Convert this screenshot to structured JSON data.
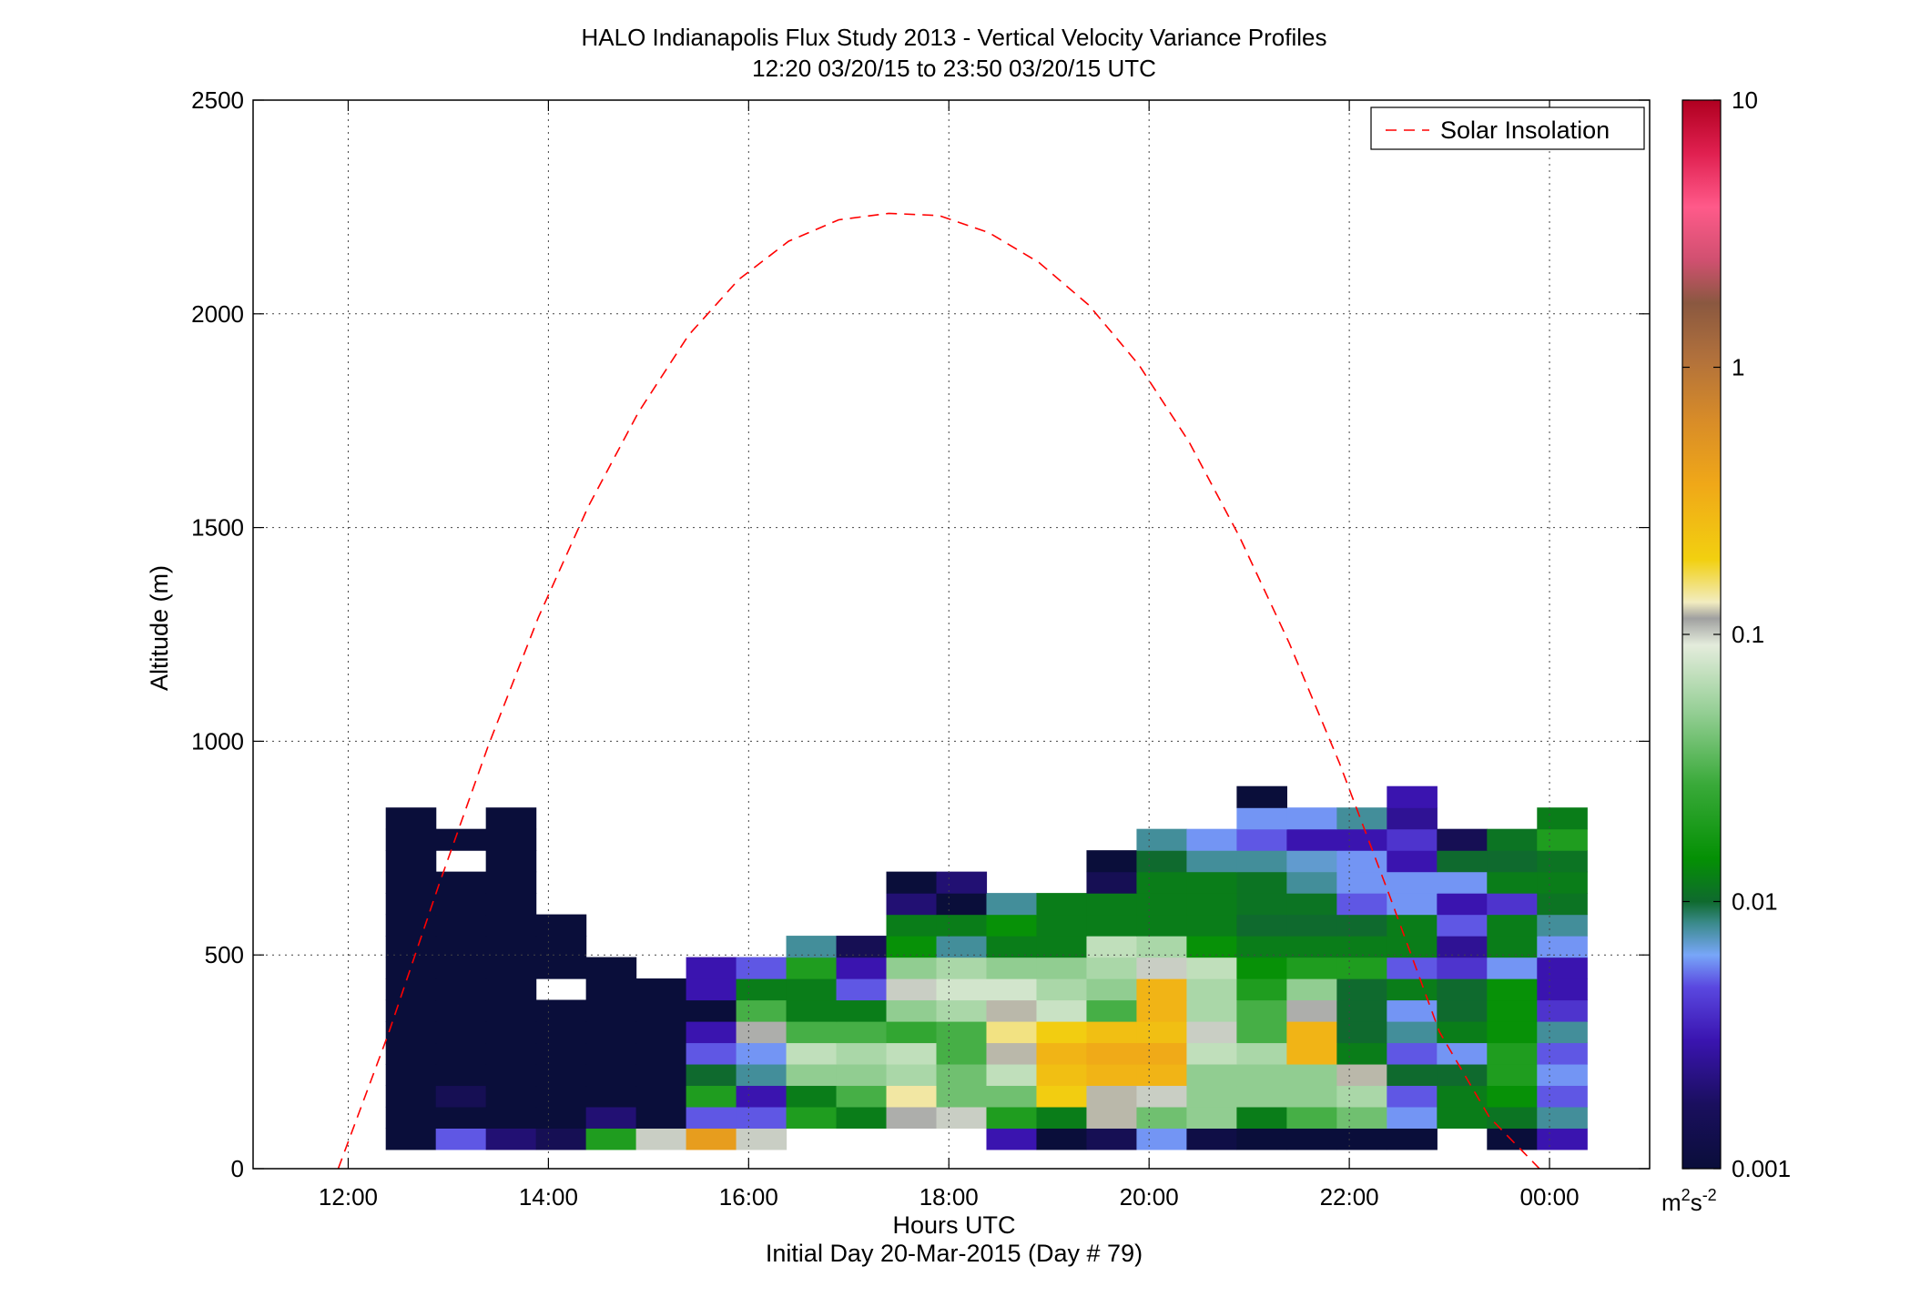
{
  "chart_data": {
    "type": "heatmap",
    "title": "HALO Indianapolis Flux Study 2013 - Vertical Velocity Variance Profiles",
    "subtitle": "12:20 03/20/15 to 23:50 03/20/15  UTC",
    "xlabel": "Hours UTC",
    "xlabel2": "Initial Day 20-Mar-2015 (Day # 79)",
    "ylabel": "Altitude (m)",
    "xlim": [
      11.05,
      25.0
    ],
    "ylim": [
      0,
      2500
    ],
    "x_ticks": [
      12,
      14,
      16,
      18,
      20,
      22,
      24
    ],
    "x_tick_labels": [
      "12:00",
      "14:00",
      "16:00",
      "18:00",
      "20:00",
      "22:00",
      "00:00"
    ],
    "y_ticks": [
      0,
      500,
      1000,
      1500,
      2000,
      2500
    ],
    "y_tick_labels": [
      "0",
      "500",
      "1000",
      "1500",
      "2000",
      "2500"
    ],
    "grid": true,
    "legend_position": "top-right",
    "colorbar": {
      "scale": "log",
      "range": [
        0.001,
        10
      ],
      "ticks": [
        0.001,
        0.01,
        0.1,
        1,
        10
      ],
      "tick_labels": [
        "0.001",
        "0.01",
        "0.1",
        "1",
        "10"
      ],
      "units_base": "m",
      "units_exp1": "2",
      "units_mid": "s",
      "units_exp2": "-2"
    },
    "time_bins_start_hour": 12.375,
    "time_bin_width_hours": 0.5,
    "altitude_bins_start_m": 45,
    "altitude_bin_height_m": 50,
    "grid_values": [
      [
        0.001,
        0.005,
        0.002,
        0.0015,
        0.02,
        0.1,
        0.45,
        0.1,
        null,
        null,
        null,
        null,
        0.003,
        0.001,
        0.0015,
        0.006,
        0.0012,
        0.001,
        0.001,
        0.001,
        0.001,
        null,
        0.001,
        0.003
      ],
      [
        0.001,
        0.001,
        0.001,
        0.001,
        0.002,
        0.001,
        0.005,
        0.005,
        0.02,
        0.012,
        0.11,
        0.1,
        0.02,
        0.012,
        0.12,
        0.04,
        0.05,
        0.012,
        0.03,
        0.04,
        0.006,
        0.012,
        0.011,
        0.008
      ],
      [
        0.001,
        0.0015,
        0.001,
        0.001,
        0.001,
        0.001,
        0.02,
        0.003,
        0.012,
        0.03,
        0.14,
        0.04,
        0.04,
        0.2,
        0.12,
        0.1,
        0.05,
        0.05,
        0.05,
        0.06,
        0.005,
        0.012,
        0.015,
        0.005
      ],
      [
        0.001,
        0.001,
        0.001,
        0.001,
        0.001,
        0.001,
        0.01,
        0.008,
        0.05,
        0.05,
        0.06,
        0.04,
        0.07,
        0.25,
        0.3,
        0.3,
        0.05,
        0.05,
        0.05,
        0.12,
        0.01,
        0.01,
        0.02,
        0.006
      ],
      [
        0.001,
        0.001,
        0.001,
        0.001,
        0.001,
        0.001,
        0.005,
        0.006,
        0.07,
        0.06,
        0.07,
        0.03,
        0.12,
        0.3,
        0.35,
        0.35,
        0.07,
        0.06,
        0.3,
        0.012,
        0.005,
        0.006,
        0.02,
        0.005
      ],
      [
        0.001,
        0.001,
        0.001,
        0.001,
        0.001,
        0.001,
        0.003,
        0.11,
        0.03,
        0.03,
        0.025,
        0.03,
        0.15,
        0.2,
        0.25,
        0.25,
        0.1,
        0.03,
        0.3,
        0.01,
        0.008,
        0.012,
        0.015,
        0.008
      ],
      [
        0.001,
        0.001,
        0.001,
        0.001,
        0.001,
        0.001,
        0.001,
        0.03,
        0.012,
        0.012,
        0.05,
        0.06,
        0.12,
        0.075,
        0.03,
        0.3,
        0.06,
        0.03,
        0.11,
        0.01,
        0.006,
        0.01,
        0.015,
        0.004
      ],
      [
        0.001,
        0.001,
        0.001,
        null,
        0.001,
        0.001,
        0.003,
        0.012,
        0.012,
        0.005,
        0.1,
        0.08,
        0.08,
        0.06,
        0.05,
        0.3,
        0.06,
        0.02,
        0.05,
        0.01,
        0.012,
        0.01,
        0.015,
        0.003
      ],
      [
        0.001,
        0.001,
        0.001,
        0.001,
        0.001,
        null,
        0.003,
        0.005,
        0.02,
        0.003,
        0.05,
        0.06,
        0.05,
        0.05,
        0.06,
        0.1,
        0.07,
        0.015,
        0.02,
        0.02,
        0.005,
        0.004,
        0.006,
        0.003
      ],
      [
        0.001,
        0.001,
        0.001,
        0.001,
        null,
        null,
        null,
        null,
        0.008,
        0.0015,
        0.015,
        0.008,
        0.012,
        0.012,
        0.07,
        0.06,
        0.015,
        0.012,
        0.012,
        0.012,
        0.012,
        0.0025,
        0.012,
        0.006
      ],
      [
        0.001,
        0.001,
        0.001,
        0.001,
        null,
        null,
        null,
        null,
        null,
        null,
        0.012,
        0.012,
        0.015,
        0.012,
        0.012,
        0.012,
        0.012,
        0.01,
        0.01,
        0.01,
        0.012,
        0.005,
        0.012,
        0.008
      ],
      [
        0.001,
        0.001,
        0.001,
        null,
        null,
        null,
        null,
        null,
        null,
        null,
        0.002,
        0.001,
        0.008,
        0.012,
        0.012,
        0.012,
        0.012,
        0.011,
        0.011,
        0.005,
        0.006,
        0.003,
        0.004,
        0.011
      ],
      [
        0.001,
        0.001,
        0.001,
        null,
        null,
        null,
        null,
        null,
        null,
        null,
        0.001,
        0.002,
        null,
        null,
        0.0015,
        0.012,
        0.012,
        0.011,
        0.008,
        0.006,
        0.006,
        0.006,
        0.012,
        0.012
      ],
      [
        0.001,
        null,
        0.001,
        null,
        null,
        null,
        null,
        null,
        null,
        null,
        null,
        null,
        null,
        null,
        0.001,
        0.01,
        0.008,
        0.008,
        0.007,
        0.006,
        0.003,
        0.01,
        0.01,
        0.011
      ],
      [
        0.001,
        0.001,
        0.001,
        null,
        null,
        null,
        null,
        null,
        null,
        null,
        null,
        null,
        null,
        null,
        null,
        0.008,
        0.006,
        0.005,
        0.003,
        0.003,
        0.004,
        0.0015,
        0.011,
        0.02
      ],
      [
        0.001,
        null,
        0.001,
        null,
        null,
        null,
        null,
        null,
        null,
        null,
        null,
        null,
        null,
        null,
        null,
        null,
        null,
        0.006,
        0.006,
        0.008,
        0.0025,
        null,
        null,
        0.012
      ],
      [
        null,
        null,
        null,
        null,
        null,
        null,
        null,
        null,
        null,
        null,
        null,
        null,
        null,
        null,
        null,
        null,
        null,
        0.001,
        null,
        null,
        0.003,
        null,
        null,
        null
      ]
    ],
    "series": [
      {
        "name": "Solar Insolation",
        "style": "dashed",
        "color": "#ff0000",
        "x": [
          11.9,
          12.4,
          12.9,
          13.4,
          13.9,
          14.4,
          14.9,
          15.4,
          15.9,
          16.4,
          16.9,
          17.4,
          17.9,
          18.4,
          18.9,
          19.4,
          19.9,
          20.4,
          20.9,
          21.4,
          21.9,
          22.4,
          22.9,
          23.4,
          23.9
        ],
        "y": [
          0,
          315,
          660,
          990,
          1290,
          1550,
          1770,
          1950,
          2080,
          2170,
          2220,
          2235,
          2230,
          2190,
          2120,
          2020,
          1880,
          1700,
          1480,
          1230,
          950,
          640,
          320,
          120,
          0
        ]
      }
    ]
  }
}
